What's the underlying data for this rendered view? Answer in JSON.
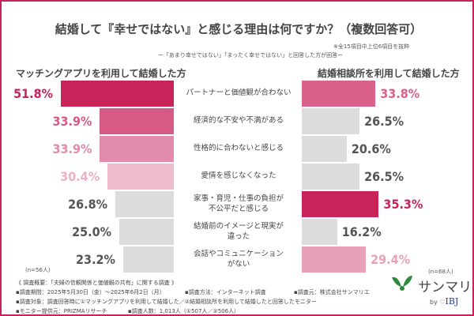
{
  "title": "結婚して『幸せではない』と感じる理由は何ですか？（複数回答可）",
  "note": "※全15項目中上位6項目を抜粋",
  "subtitle": "ー「あまり幸せではない」「まったく幸せではない」と回答した方が回答ー",
  "chart_data": {
    "type": "bar",
    "orientation": "horizontal-butterfly",
    "categories": [
      "パートナーと価値観が合わない",
      "経済的な不安や不満がある",
      "性格的に合わないと感じる",
      "愛情を感じなくなった",
      "家事・育児・仕事の負担が\n不公平だと感じる",
      "結婚前のイメージと現実が\n違った",
      "会話やコミュニケーション\nがない"
    ],
    "series": [
      {
        "name": "マッチングアプリを利用して結婚した方",
        "n": "(n=56人)",
        "values": [
          51.8,
          33.9,
          33.9,
          30.4,
          26.8,
          25.0,
          23.2
        ],
        "labels": [
          "51.8%",
          "33.9%",
          "33.9%",
          "30.4%",
          "26.8%",
          "25.0%",
          "23.2%"
        ],
        "colors": [
          "#c8245a",
          "#d65a85",
          "#e28aab",
          "#efbccd",
          "#dcdcdc",
          "#dcdcdc",
          "#dcdcdc"
        ],
        "label_colors": [
          "#c8245a",
          "#d65a85",
          "#e28aab",
          "#efaec4",
          "#555555",
          "#555555",
          "#555555"
        ]
      },
      {
        "name": "結婚相談所を利用して結婚した方",
        "n": "(n=68人)",
        "values": [
          33.8,
          26.5,
          20.6,
          26.5,
          35.3,
          16.2,
          29.4
        ],
        "labels": [
          "33.8%",
          "26.5%",
          "20.6%",
          "26.5%",
          "35.3%",
          "16.2%",
          "29.4%"
        ],
        "colors": [
          "#d9628a",
          "#dcdcdc",
          "#dcdcdc",
          "#dcdcdc",
          "#c8245a",
          "#dcdcdc",
          "#e9a0b9"
        ],
        "label_colors": [
          "#d9628a",
          "#555555",
          "#555555",
          "#555555",
          "#c8245a",
          "#555555",
          "#e9a0b9"
        ]
      }
    ]
  },
  "footer": {
    "heading": "《 調査概要：「夫婦の信頼関係と価値観の共有」に関する調査 》",
    "period": "▪調査期間：2025年5月30日（金）〜2025年6月2日（月）",
    "method": "▪調査方法：インターネット調査",
    "org": "▪調査元：株式会社サンマリエ",
    "target": "▪調査対象：調査回答時に①マッチングアプリを利用して結婚した／②結婚相談所を利用して結婚したと回答したモニター",
    "provider": "▪モニター提供元：PRIZMAリサーチ",
    "count": "▪調査人数：1,013人（①507人／②506人）"
  },
  "logo": {
    "name": "サンマリエ",
    "by": "by",
    "brand": "IBJ"
  },
  "colors": {
    "accent": "#c8245a"
  }
}
